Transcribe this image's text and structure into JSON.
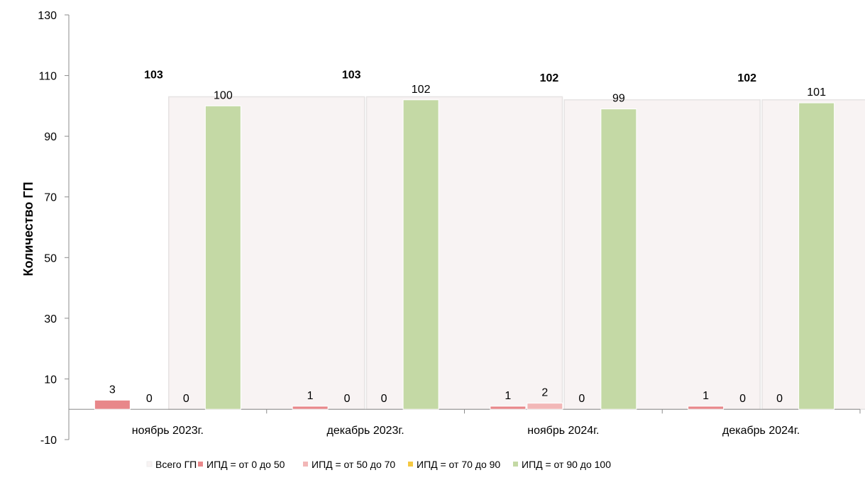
{
  "chart_data": {
    "type": "bar",
    "ylabel": "Количество ГП",
    "xlabel": "",
    "ylim": [
      -10,
      130
    ],
    "yticks": [
      -10,
      10,
      30,
      50,
      70,
      90,
      110,
      130
    ],
    "categories": [
      "ноябрь 2023г.",
      "декабрь 2023г.",
      "ноябрь 2024г.",
      "декабрь 2024г."
    ],
    "series": [
      {
        "name": "Всего ГП",
        "values": [
          103,
          103,
          102,
          102
        ],
        "color": "#f8f3f3",
        "role": "background"
      },
      {
        "name": "ИПД = от 0 до 50",
        "values": [
          3,
          1,
          1,
          1
        ],
        "color": "#e8878a"
      },
      {
        "name": "ИПД = от 50 до 70",
        "values": [
          0,
          0,
          2,
          0
        ],
        "color": "#f2b7b7"
      },
      {
        "name": "ИПД = от 70 до 90",
        "values": [
          0,
          0,
          0,
          0
        ],
        "color": "#f5c842"
      },
      {
        "name": "ИПД  =  от 90 до 100",
        "values": [
          100,
          102,
          99,
          101
        ],
        "color": "#c4d9a5"
      }
    ],
    "legend_position": "bottom",
    "grid": false
  }
}
